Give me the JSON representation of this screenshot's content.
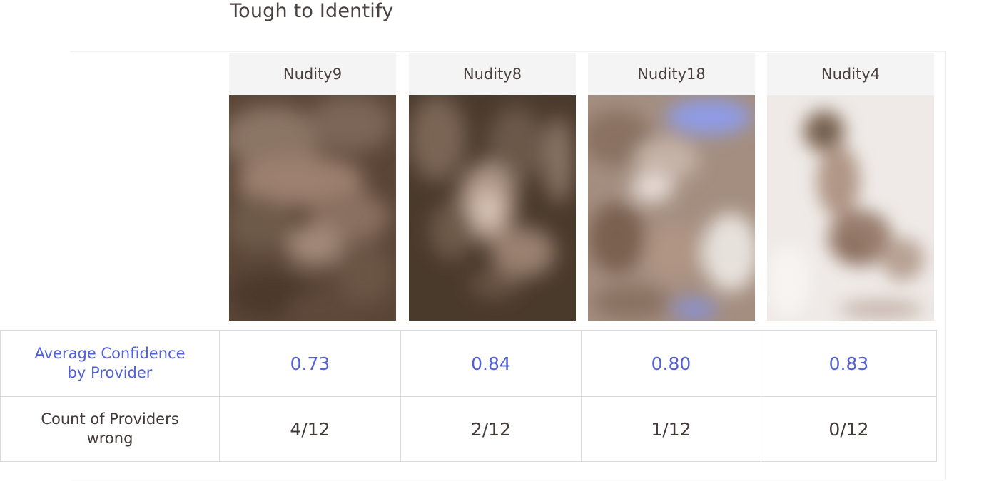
{
  "title": "Tough to Identify",
  "columns": [
    {
      "name": "Nudity9",
      "avg_confidence": "0.73",
      "count_wrong": "4/12"
    },
    {
      "name": "Nudity8",
      "avg_confidence": "0.84",
      "count_wrong": "2/12"
    },
    {
      "name": "Nudity18",
      "avg_confidence": "0.80",
      "count_wrong": "1/12"
    },
    {
      "name": "Nudity4",
      "avg_confidence": "0.83",
      "count_wrong": "0/12"
    }
  ],
  "rows": {
    "confidence_label_line1": "Average Confidence",
    "confidence_label_line2": "by Provider",
    "wrong_label_line1": "Count of Providers",
    "wrong_label_line2": "wrong"
  },
  "colors": {
    "accent_blue": "#5160d6",
    "text_dark": "#433a3a",
    "header_bg": "#f4f4f4"
  }
}
